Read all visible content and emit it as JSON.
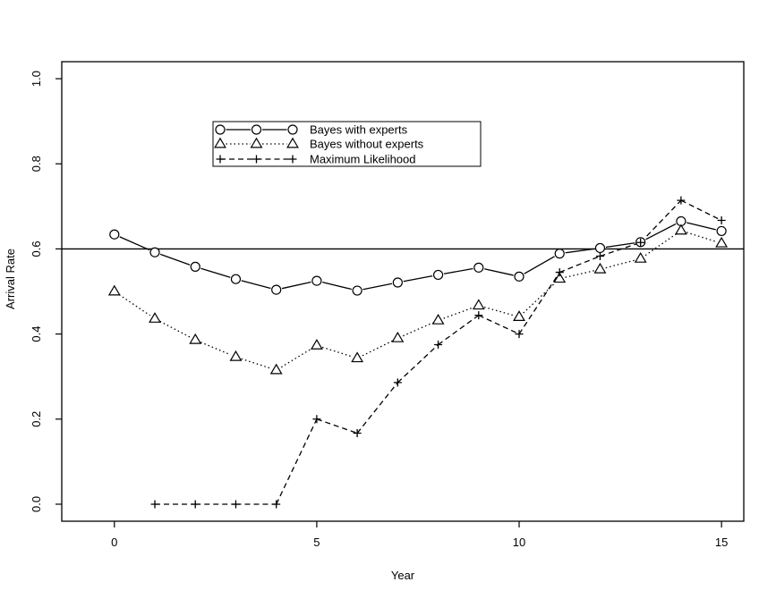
{
  "chart_data": {
    "type": "line",
    "title": "",
    "xlabel": "Year",
    "ylabel": "Arrival Rate",
    "xlim": [
      -1.3,
      15.55
    ],
    "ylim": [
      -0.04,
      1.04
    ],
    "xticks": [
      0,
      5,
      10,
      15
    ],
    "yticks": [
      0.0,
      0.2,
      0.4,
      0.6,
      0.8,
      1.0
    ],
    "xtick_labels": [
      "0",
      "5",
      "10",
      "15"
    ],
    "ytick_labels": [
      "0.0",
      "0.2",
      "0.4",
      "0.6",
      "0.8",
      "1.0"
    ],
    "grid": false,
    "legend_position": "upper-left-center",
    "reference_line": {
      "y": 0.6
    },
    "series": [
      {
        "name": "Bayes with experts",
        "marker": "circle",
        "linestyle": "solid",
        "x": [
          0,
          1,
          2,
          3,
          4,
          5,
          6,
          7,
          8,
          9,
          10,
          11,
          12,
          13,
          14,
          15
        ],
        "y": [
          0.634,
          0.592,
          0.558,
          0.529,
          0.504,
          0.525,
          0.502,
          0.521,
          0.539,
          0.556,
          0.535,
          0.589,
          0.602,
          0.616,
          0.665,
          0.642
        ]
      },
      {
        "name": "Bayes without experts",
        "marker": "triangle",
        "linestyle": "dotted",
        "x": [
          0,
          1,
          2,
          3,
          4,
          5,
          6,
          7,
          8,
          9,
          10,
          11,
          12,
          13,
          14,
          15
        ],
        "y": [
          0.5,
          0.436,
          0.386,
          0.346,
          0.315,
          0.373,
          0.343,
          0.39,
          0.432,
          0.467,
          0.44,
          0.53,
          0.552,
          0.577,
          0.643,
          0.613
        ]
      },
      {
        "name": "Maximum Likelihood",
        "marker": "plus",
        "linestyle": "dashed",
        "x": [
          1,
          2,
          3,
          4,
          5,
          6,
          7,
          8,
          9,
          10,
          11,
          12,
          13,
          14,
          15
        ],
        "y": [
          0.0,
          0.0,
          0.0,
          0.0,
          0.2,
          0.167,
          0.286,
          0.375,
          0.444,
          0.4,
          0.545,
          0.583,
          0.615,
          0.714,
          0.667
        ]
      }
    ]
  }
}
